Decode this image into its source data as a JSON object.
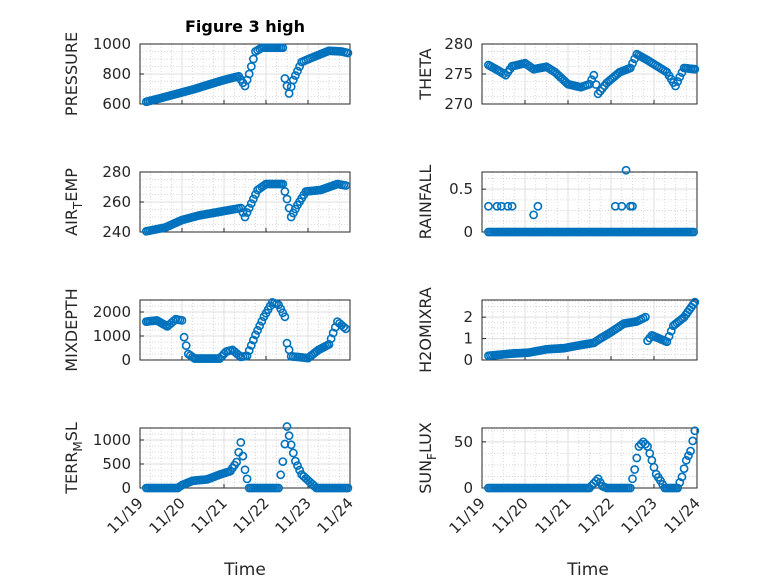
{
  "figure_title": "Figure 3 high",
  "colors": {
    "marker": "#0072BD",
    "axis": "#262626"
  },
  "x_ticks": [
    "11/19",
    "11/20",
    "11/21",
    "11/22",
    "11/23",
    "11/24"
  ],
  "x_label": "Time",
  "chart_data": [
    {
      "type": "scatter",
      "id": "pressure",
      "ylabel": "PRESSURE",
      "xlim": [
        0,
        5
      ],
      "ylim": [
        600,
        1000
      ],
      "yticks": [
        600,
        800,
        1000
      ],
      "x_ticks": [
        "",
        "",
        "",
        "",
        "",
        ""
      ],
      "anchors": [
        [
          0.15,
          615
        ],
        [
          0.5,
          640
        ],
        [
          0.9,
          670
        ],
        [
          1.3,
          700
        ],
        [
          1.7,
          735
        ],
        [
          2.0,
          760
        ],
        [
          2.35,
          785
        ],
        [
          2.5,
          720
        ],
        [
          2.6,
          800
        ],
        [
          2.75,
          950
        ],
        [
          2.9,
          975
        ],
        [
          3.4,
          975
        ],
        [
          3.45,
          770
        ],
        [
          3.55,
          670
        ],
        [
          3.65,
          760
        ],
        [
          3.85,
          880
        ],
        [
          4.1,
          910
        ],
        [
          4.5,
          955
        ],
        [
          4.8,
          950
        ],
        [
          4.95,
          940
        ]
      ]
    },
    {
      "type": "scatter",
      "id": "theta",
      "ylabel": "THETA",
      "xlim": [
        0,
        5
      ],
      "ylim": [
        270,
        280
      ],
      "yticks": [
        270,
        275,
        280
      ],
      "x_ticks": [
        "",
        "",
        "",
        "",
        "",
        ""
      ],
      "anchors": [
        [
          0.15,
          276.5
        ],
        [
          0.4,
          275.5
        ],
        [
          0.55,
          274.8
        ],
        [
          0.7,
          276.3
        ],
        [
          1.0,
          276.8
        ],
        [
          1.2,
          275.8
        ],
        [
          1.5,
          276.2
        ],
        [
          1.7,
          275.3
        ],
        [
          2.0,
          273.3
        ],
        [
          2.3,
          272.8
        ],
        [
          2.5,
          273.3
        ],
        [
          2.6,
          274.8
        ],
        [
          2.7,
          271.7
        ],
        [
          2.9,
          273.5
        ],
        [
          3.2,
          275.3
        ],
        [
          3.45,
          276.0
        ],
        [
          3.6,
          278.3
        ],
        [
          3.85,
          277.3
        ],
        [
          4.3,
          275.3
        ],
        [
          4.5,
          273.0
        ],
        [
          4.7,
          276.0
        ],
        [
          4.95,
          275.8
        ]
      ]
    },
    {
      "type": "scatter",
      "id": "air_temp",
      "ylabel": "AIR_TEMP",
      "xlim": [
        0,
        5
      ],
      "ylim": [
        240,
        280
      ],
      "yticks": [
        240,
        260,
        280
      ],
      "x_ticks": [
        "",
        "",
        "",
        "",
        "",
        ""
      ],
      "anchors": [
        [
          0.15,
          240.5
        ],
        [
          0.6,
          243
        ],
        [
          1.0,
          248
        ],
        [
          1.4,
          251
        ],
        [
          1.8,
          253
        ],
        [
          2.2,
          255
        ],
        [
          2.4,
          256
        ],
        [
          2.5,
          250
        ],
        [
          2.6,
          256
        ],
        [
          2.8,
          268
        ],
        [
          3.0,
          272
        ],
        [
          3.4,
          272
        ],
        [
          3.5,
          262
        ],
        [
          3.6,
          250
        ],
        [
          3.75,
          258
        ],
        [
          3.95,
          267
        ],
        [
          4.3,
          268
        ],
        [
          4.7,
          272
        ],
        [
          4.9,
          271
        ]
      ]
    },
    {
      "type": "scatter",
      "id": "rainfall",
      "ylabel": "RAINFALL",
      "xlim": [
        0,
        5
      ],
      "ylim": [
        0,
        0.7
      ],
      "yticks": [
        0,
        0.5
      ],
      "x_ticks": [
        "",
        "",
        "",
        "",
        "",
        ""
      ],
      "zero_span": [
        0.15,
        4.95
      ],
      "spikes": [
        [
          0.15,
          0.3
        ],
        [
          0.35,
          0.3
        ],
        [
          0.45,
          0.3
        ],
        [
          0.6,
          0.3
        ],
        [
          0.7,
          0.3
        ],
        [
          1.2,
          0.2
        ],
        [
          1.3,
          0.3
        ],
        [
          3.1,
          0.3
        ],
        [
          3.25,
          0.3
        ],
        [
          3.35,
          0.72
        ],
        [
          3.45,
          0.3
        ],
        [
          3.5,
          0.3
        ]
      ]
    },
    {
      "type": "scatter",
      "id": "mixdepth",
      "ylabel": "MIXDEPTH",
      "xlim": [
        0,
        5
      ],
      "ylim": [
        0,
        2500
      ],
      "yticks": [
        0,
        1000,
        2000
      ],
      "x_ticks": [
        "",
        "",
        "",
        "",
        "",
        ""
      ],
      "anchors": [
        [
          0.15,
          1600
        ],
        [
          0.4,
          1650
        ],
        [
          0.65,
          1400
        ],
        [
          0.85,
          1700
        ],
        [
          1.0,
          1650
        ],
        [
          1.05,
          950
        ],
        [
          1.15,
          250
        ],
        [
          1.3,
          60
        ],
        [
          1.9,
          60
        ],
        [
          2.05,
          350
        ],
        [
          2.2,
          420
        ],
        [
          2.4,
          130
        ],
        [
          2.55,
          170
        ],
        [
          2.75,
          1050
        ],
        [
          2.95,
          1800
        ],
        [
          3.15,
          2400
        ],
        [
          3.3,
          2300
        ],
        [
          3.45,
          1800
        ],
        [
          3.5,
          700
        ],
        [
          3.6,
          150
        ],
        [
          3.8,
          120
        ],
        [
          4.0,
          80
        ],
        [
          4.25,
          420
        ],
        [
          4.5,
          650
        ],
        [
          4.7,
          1600
        ],
        [
          4.9,
          1300
        ]
      ]
    },
    {
      "type": "scatter",
      "id": "h2omixra",
      "ylabel": "H2OMIXRA",
      "xlim": [
        0,
        5
      ],
      "ylim": [
        0,
        2.8
      ],
      "yticks": [
        0,
        1,
        2
      ],
      "x_ticks": [
        "",
        "",
        "",
        "",
        "",
        ""
      ],
      "anchors": [
        [
          0.15,
          0.2
        ],
        [
          0.7,
          0.3
        ],
        [
          1.1,
          0.35
        ],
        [
          1.5,
          0.5
        ],
        [
          1.9,
          0.55
        ],
        [
          2.3,
          0.7
        ],
        [
          2.6,
          0.8
        ],
        [
          2.75,
          1.0
        ],
        [
          3.0,
          1.3
        ],
        [
          3.3,
          1.7
        ],
        [
          3.6,
          1.8
        ],
        [
          3.8,
          2.0
        ],
        [
          3.85,
          0.9
        ],
        [
          3.95,
          1.15
        ],
        [
          4.3,
          0.85
        ],
        [
          4.45,
          1.6
        ],
        [
          4.7,
          2.0
        ],
        [
          4.95,
          2.7
        ]
      ]
    },
    {
      "type": "scatter",
      "id": "terr_msl",
      "ylabel": "TERR_MSL",
      "xlim": [
        0,
        5
      ],
      "ylim": [
        0,
        1250
      ],
      "yticks": [
        0,
        500,
        1000
      ],
      "x_ticks": [
        "11/19",
        "11/20",
        "11/21",
        "11/22",
        "11/23",
        "11/24"
      ],
      "anchors": [
        [
          0.15,
          0
        ],
        [
          0.9,
          0
        ],
        [
          1.0,
          60
        ],
        [
          1.25,
          150
        ],
        [
          1.6,
          180
        ],
        [
          1.9,
          280
        ],
        [
          2.15,
          350
        ],
        [
          2.3,
          540
        ],
        [
          2.4,
          950
        ],
        [
          2.5,
          380
        ],
        [
          2.6,
          0
        ],
        [
          3.3,
          0
        ],
        [
          3.4,
          550
        ],
        [
          3.5,
          1280
        ],
        [
          3.6,
          900
        ],
        [
          3.7,
          560
        ],
        [
          3.85,
          280
        ],
        [
          4.05,
          120
        ],
        [
          4.2,
          0
        ],
        [
          4.95,
          0
        ]
      ]
    },
    {
      "type": "scatter",
      "id": "sun_flux",
      "ylabel": "SUN_FLUX",
      "xlim": [
        0,
        5
      ],
      "ylim": [
        0,
        65
      ],
      "yticks": [
        0,
        50
      ],
      "x_ticks": [
        "11/19",
        "11/20",
        "11/21",
        "11/22",
        "11/23",
        "11/24"
      ],
      "anchors": [
        [
          0.15,
          0
        ],
        [
          2.5,
          0
        ],
        [
          2.6,
          5
        ],
        [
          2.7,
          10
        ],
        [
          2.8,
          2
        ],
        [
          2.9,
          0
        ],
        [
          3.45,
          0
        ],
        [
          3.55,
          20
        ],
        [
          3.65,
          45
        ],
        [
          3.75,
          50
        ],
        [
          3.85,
          45
        ],
        [
          3.95,
          30
        ],
        [
          4.05,
          15
        ],
        [
          4.15,
          8
        ],
        [
          4.25,
          0
        ],
        [
          4.55,
          0
        ],
        [
          4.65,
          12
        ],
        [
          4.75,
          30
        ],
        [
          4.85,
          40
        ],
        [
          4.95,
          62
        ]
      ]
    }
  ],
  "ylabel_parts": {
    "air_temp": [
      "AIR",
      "T",
      "EMP"
    ],
    "terr_msl": [
      "TERR",
      "M",
      "SL"
    ],
    "sun_flux": [
      "SUN",
      "F",
      "LUX"
    ]
  }
}
